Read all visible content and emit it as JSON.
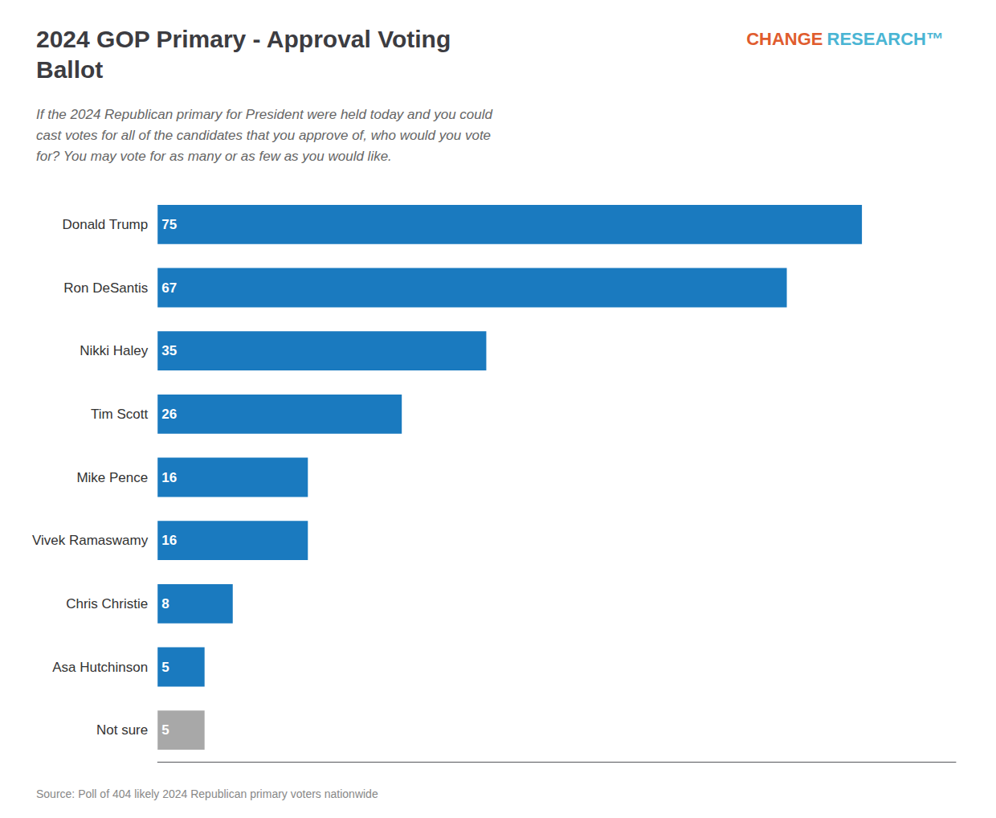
{
  "chart_data": {
    "type": "bar",
    "orientation": "horizontal",
    "title": "2024 GOP Primary - Approval Voting\nBallot",
    "subtitle": "If the 2024 Republican primary for President were held today and you could\ncast votes for all of the candidates that you approve of, who would you vote\nfor? You may vote for as many or as few as you would like.",
    "annotations": [
      {
        "text": "CHANGE",
        "color": "#e05c2e"
      },
      {
        "text": "RESEARCH™",
        "color": "#4ab5d4"
      },
      {
        "text": "Source: Poll of 404 likely 2024 Republican primary voters nationwide"
      }
    ],
    "categories": [
      "Donald Trump",
      "Ron DeSantis",
      "Nikki Haley",
      "Tim Scott",
      "Mike Pence",
      "Vivek Ramaswamy",
      "Chris Christie",
      "Asa Hutchinson",
      "Not sure"
    ],
    "values": [
      75,
      67,
      35,
      26,
      16,
      16,
      8,
      5,
      5
    ],
    "colors": [
      "#1a7abf",
      "#1a7abf",
      "#1a7abf",
      "#1a7abf",
      "#1a7abf",
      "#1a7abf",
      "#1a7abf",
      "#1a7abf",
      "#a8a8a8"
    ],
    "xlim": [
      0,
      85
    ],
    "data_labels": true,
    "tick_labels": "y",
    "grid": false
  }
}
